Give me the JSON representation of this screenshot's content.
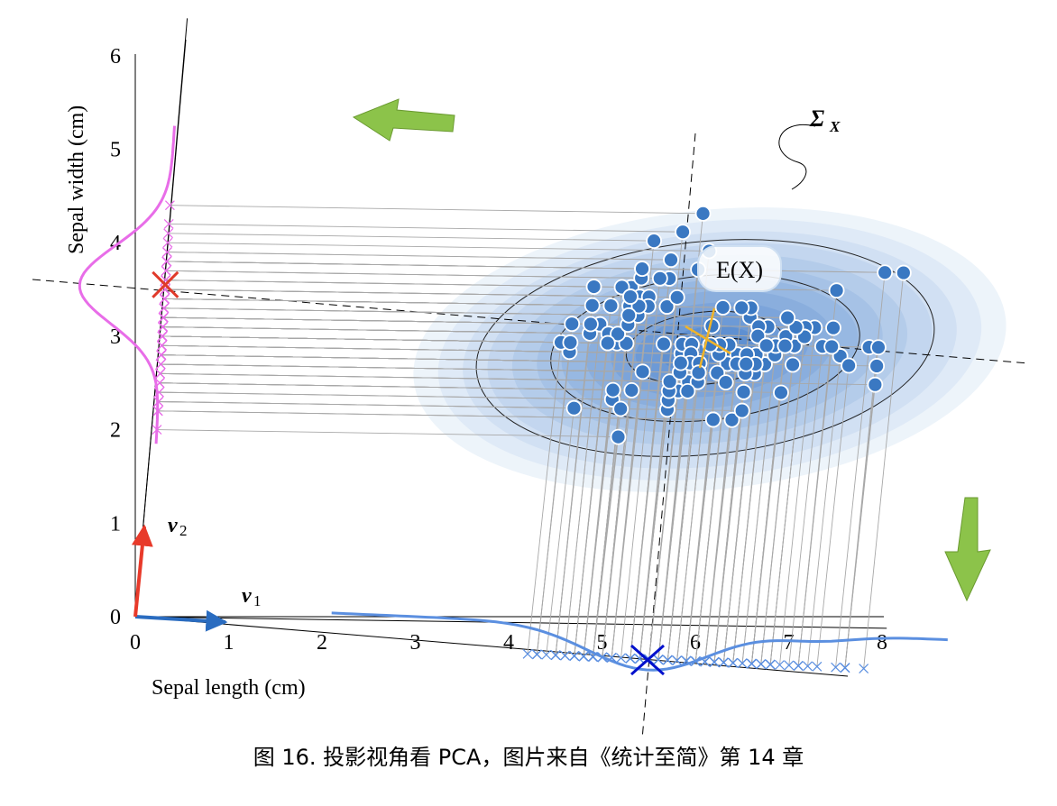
{
  "chart_data": {
    "type": "scatter",
    "xlabel": "Sepal length (cm)",
    "ylabel": "Sepal width (cm)",
    "xlim": [
      0,
      8
    ],
    "ylim": [
      0,
      6
    ],
    "xticks": [
      "0",
      "1",
      "2",
      "3",
      "4",
      "5",
      "6",
      "7",
      "8"
    ],
    "yticks": [
      "0",
      "1",
      "2",
      "3",
      "4",
      "5",
      "6"
    ],
    "grid": false,
    "mean_label": "E(X)",
    "cov_label": "Σ",
    "cov_label_sub": "X",
    "v1_label": "v",
    "v1_sub": "1",
    "v2_label": "v",
    "v2_sub": "2",
    "mean": [
      5.84,
      3.06
    ],
    "colors": {
      "points": "#3a78c2",
      "x_projection": "#5b8fe0",
      "y_projection": "#e86de8",
      "mean_marker": "#f0b429",
      "x_mean_marker": "#0010cc",
      "y_mean_marker": "#e03a2a",
      "v1": "#2a6cc0",
      "v2": "#e83a2a",
      "arrows": "#8cc34a"
    },
    "points": [
      [
        5.1,
        3.5
      ],
      [
        4.9,
        3.0
      ],
      [
        4.7,
        3.2
      ],
      [
        4.6,
        3.1
      ],
      [
        5.0,
        3.6
      ],
      [
        5.4,
        3.9
      ],
      [
        4.6,
        3.4
      ],
      [
        5.0,
        3.4
      ],
      [
        4.4,
        2.9
      ],
      [
        4.9,
        3.1
      ],
      [
        5.4,
        3.7
      ],
      [
        4.8,
        3.4
      ],
      [
        4.8,
        3.0
      ],
      [
        4.3,
        3.0
      ],
      [
        5.8,
        4.0
      ],
      [
        5.7,
        4.4
      ],
      [
        5.4,
        3.9
      ],
      [
        5.1,
        3.5
      ],
      [
        5.7,
        3.8
      ],
      [
        5.1,
        3.8
      ],
      [
        5.4,
        3.4
      ],
      [
        5.1,
        3.7
      ],
      [
        4.6,
        3.6
      ],
      [
        5.1,
        3.3
      ],
      [
        4.8,
        3.4
      ],
      [
        5.0,
        3.0
      ],
      [
        5.0,
        3.4
      ],
      [
        5.2,
        3.5
      ],
      [
        5.2,
        3.4
      ],
      [
        4.7,
        3.2
      ],
      [
        4.8,
        3.1
      ],
      [
        5.4,
        3.4
      ],
      [
        5.2,
        4.1
      ],
      [
        5.5,
        4.2
      ],
      [
        4.9,
        3.1
      ],
      [
        5.0,
        3.2
      ],
      [
        5.5,
        3.5
      ],
      [
        4.9,
        3.6
      ],
      [
        4.4,
        3.0
      ],
      [
        5.1,
        3.4
      ],
      [
        5.0,
        3.5
      ],
      [
        4.5,
        2.3
      ],
      [
        4.4,
        3.2
      ],
      [
        5.0,
        3.5
      ],
      [
        5.1,
        3.8
      ],
      [
        4.8,
        3.0
      ],
      [
        5.1,
        3.8
      ],
      [
        4.6,
        3.2
      ],
      [
        5.3,
        3.7
      ],
      [
        5.0,
        3.3
      ],
      [
        7.0,
        3.2
      ],
      [
        6.4,
        3.2
      ],
      [
        6.9,
        3.1
      ],
      [
        5.5,
        2.3
      ],
      [
        6.5,
        2.8
      ],
      [
        5.7,
        2.8
      ],
      [
        6.3,
        3.3
      ],
      [
        4.9,
        2.4
      ],
      [
        6.6,
        2.9
      ],
      [
        5.2,
        2.7
      ],
      [
        5.0,
        2.0
      ],
      [
        5.9,
        3.0
      ],
      [
        6.0,
        2.2
      ],
      [
        6.1,
        2.9
      ],
      [
        5.6,
        2.9
      ],
      [
        6.7,
        3.1
      ],
      [
        5.6,
        3.0
      ],
      [
        5.8,
        2.7
      ],
      [
        6.2,
        2.2
      ],
      [
        5.6,
        2.5
      ],
      [
        5.9,
        3.2
      ],
      [
        6.1,
        2.8
      ],
      [
        6.3,
        2.5
      ],
      [
        6.1,
        2.8
      ],
      [
        6.4,
        2.9
      ],
      [
        6.6,
        3.0
      ],
      [
        6.8,
        2.8
      ],
      [
        6.7,
        3.0
      ],
      [
        6.0,
        2.9
      ],
      [
        5.7,
        2.6
      ],
      [
        5.5,
        2.4
      ],
      [
        5.5,
        2.4
      ],
      [
        5.8,
        2.7
      ],
      [
        6.0,
        2.7
      ],
      [
        5.4,
        3.0
      ],
      [
        6.0,
        3.4
      ],
      [
        6.7,
        3.1
      ],
      [
        6.3,
        2.3
      ],
      [
        5.6,
        3.0
      ],
      [
        5.5,
        2.5
      ],
      [
        5.5,
        2.6
      ],
      [
        6.1,
        3.0
      ],
      [
        5.8,
        2.6
      ],
      [
        5.0,
        2.3
      ],
      [
        5.6,
        2.7
      ],
      [
        5.7,
        3.0
      ],
      [
        5.7,
        2.9
      ],
      [
        6.2,
        2.9
      ],
      [
        5.1,
        2.5
      ],
      [
        5.7,
        2.8
      ],
      [
        6.3,
        3.3
      ],
      [
        5.8,
        2.7
      ],
      [
        7.1,
        3.0
      ],
      [
        6.3,
        2.9
      ],
      [
        6.5,
        3.0
      ],
      [
        7.6,
        3.0
      ],
      [
        4.9,
        2.5
      ],
      [
        7.3,
        2.9
      ],
      [
        6.7,
        2.5
      ],
      [
        7.2,
        3.6
      ],
      [
        6.5,
        3.2
      ],
      [
        6.4,
        2.7
      ],
      [
        6.8,
        3.0
      ],
      [
        5.7,
        2.5
      ],
      [
        5.8,
        2.8
      ],
      [
        6.4,
        3.2
      ],
      [
        6.5,
        3.0
      ],
      [
        7.7,
        3.8
      ],
      [
        7.7,
        2.6
      ],
      [
        6.0,
        2.2
      ],
      [
        6.9,
        3.2
      ],
      [
        5.6,
        2.8
      ],
      [
        7.7,
        2.8
      ],
      [
        6.3,
        2.7
      ],
      [
        6.7,
        3.3
      ],
      [
        7.2,
        3.2
      ],
      [
        6.2,
        2.8
      ],
      [
        6.1,
        3.0
      ],
      [
        6.4,
        2.8
      ],
      [
        7.2,
        3.0
      ],
      [
        7.4,
        2.8
      ],
      [
        7.9,
        3.8
      ],
      [
        6.4,
        2.8
      ],
      [
        6.3,
        2.8
      ],
      [
        6.1,
        2.6
      ],
      [
        7.7,
        3.0
      ],
      [
        6.3,
        3.4
      ],
      [
        6.4,
        3.1
      ],
      [
        6.0,
        3.0
      ],
      [
        6.9,
        3.1
      ],
      [
        6.7,
        3.1
      ],
      [
        6.9,
        3.1
      ],
      [
        5.8,
        2.7
      ],
      [
        6.8,
        3.2
      ],
      [
        6.7,
        3.3
      ],
      [
        6.7,
        3.0
      ],
      [
        6.3,
        2.5
      ],
      [
        6.5,
        3.0
      ],
      [
        6.2,
        3.4
      ],
      [
        5.9,
        3.0
      ]
    ]
  },
  "caption": "图 16. 投影视角看 PCA，图片来自《统计至简》第 14 章"
}
